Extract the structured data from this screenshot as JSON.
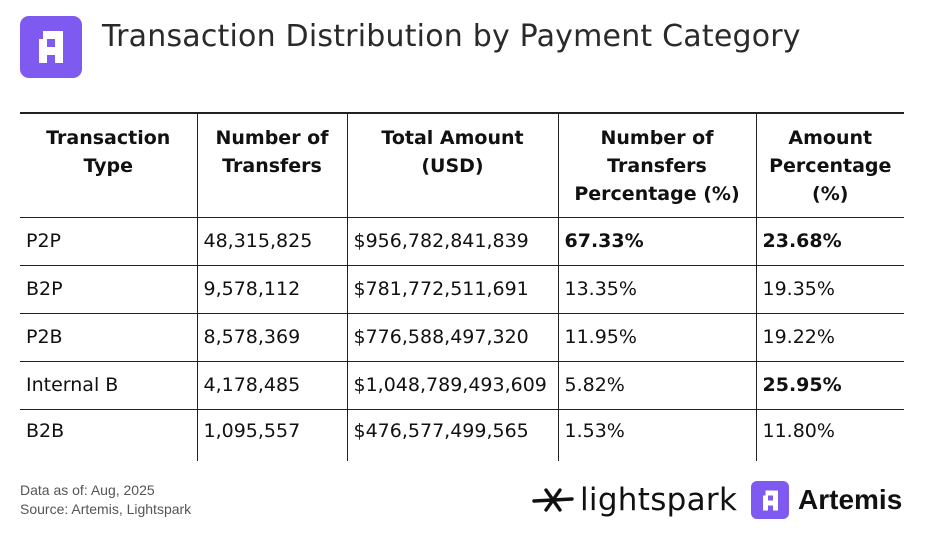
{
  "header": {
    "title": "Transaction Distribution by Payment Category",
    "logo_icon": "artemis-a-logo-icon",
    "accent_color": "#7f5af0"
  },
  "table": {
    "columns": [
      [
        "Transaction",
        "Type"
      ],
      [
        "Number of",
        "Transfers"
      ],
      [
        "Total Amount (USD)"
      ],
      [
        "Number of",
        "Transfers",
        "Percentage (%)"
      ],
      [
        "Amount",
        "Percentage",
        "(%)"
      ]
    ],
    "rows": [
      {
        "type": "P2P",
        "transfers": "48,315,825",
        "amount": "$956,782,841,839",
        "transfers_pct": "67.33%",
        "amount_pct": "23.68%"
      },
      {
        "type": "B2P",
        "transfers": "9,578,112",
        "amount": "$781,772,511,691",
        "transfers_pct": "13.35%",
        "amount_pct": "19.35%"
      },
      {
        "type": "P2B",
        "transfers": "8,578,369",
        "amount": "$776,588,497,320",
        "transfers_pct": "11.95%",
        "amount_pct": "19.22%"
      },
      {
        "type": "Internal B",
        "transfers": "4,178,485",
        "amount": "$1,048,789,493,609",
        "transfers_pct": "5.82%",
        "amount_pct": "25.95%"
      },
      {
        "type": "B2B",
        "transfers": "1,095,557",
        "amount": "$476,577,499,565",
        "transfers_pct": "1.53%",
        "amount_pct": "11.80%"
      }
    ]
  },
  "footer": {
    "data_as_of": "Data as of: Aug, 2025",
    "source": "Source: Artemis, Lightspark",
    "lightspark_name": "lightspark",
    "lightspark_icon": "lightspark-spark-icon",
    "artemis_name": "Artemis",
    "artemis_icon": "artemis-a-logo-icon"
  }
}
